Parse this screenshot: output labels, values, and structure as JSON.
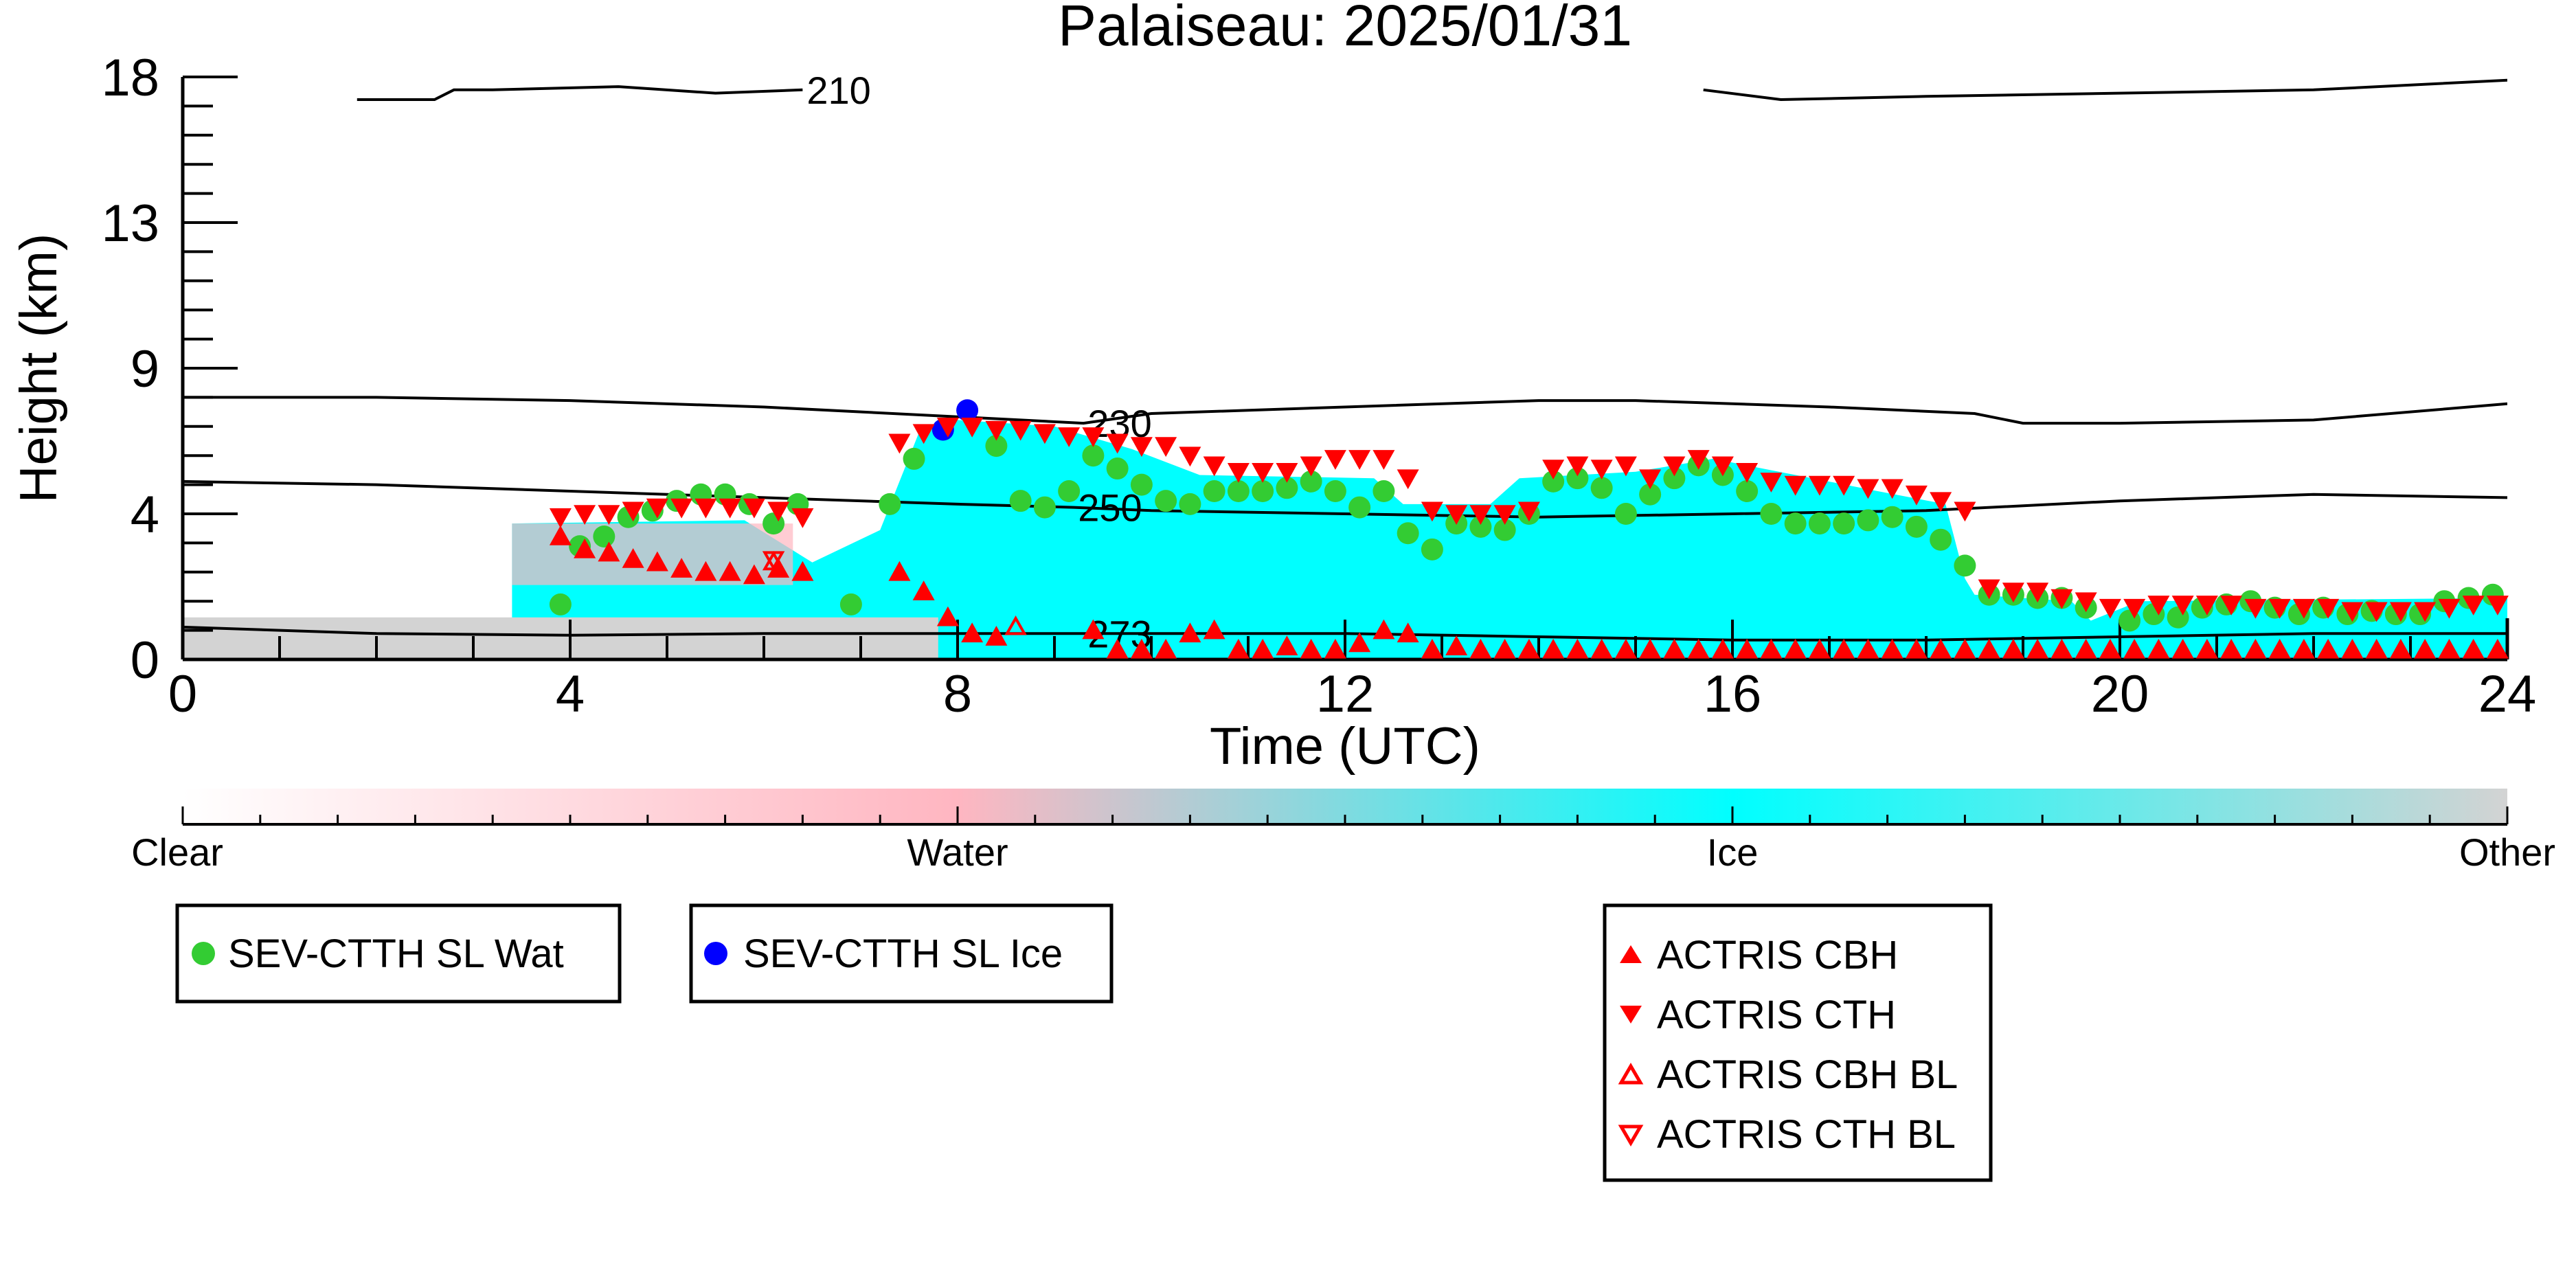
{
  "chart_data": {
    "type": "scatter",
    "title": "Palaiseau: 2025/01/31",
    "xlabel": "Time (UTC)",
    "ylabel": "Height (km)",
    "xlim": [
      0,
      24
    ],
    "ylim": [
      0,
      18
    ],
    "xticks": [
      "0",
      "4",
      "8",
      "12",
      "16",
      "20",
      "24"
    ],
    "yticks": [
      "0",
      "4",
      "9",
      "13",
      "18"
    ],
    "ytick_values": [
      0,
      4.5,
      9,
      13.5,
      18
    ],
    "colorbar": {
      "labels": [
        "Clear",
        "Water",
        "Ice",
        "Other"
      ],
      "colors": [
        "#ffffff",
        "#ffb6c1",
        "#00ffff",
        "#d3d3d3"
      ]
    },
    "contours": [
      {
        "label": "210",
        "x": [
          1.8,
          2.6,
          2.8,
          3.2,
          4.5,
          5.5,
          6.4
        ],
        "y": [
          17.3,
          17.3,
          17.6,
          17.6,
          17.7,
          17.5,
          17.6
        ]
      },
      {
        "label": "",
        "x": [
          15.7,
          16.5,
          18,
          20,
          22,
          24
        ],
        "y": [
          17.6,
          17.3,
          17.4,
          17.5,
          17.6,
          17.9
        ]
      },
      {
        "label": "230",
        "x": [
          0,
          2,
          4,
          6,
          8,
          9.3,
          10,
          12,
          14,
          15,
          17,
          18.5,
          19,
          20,
          22,
          24
        ],
        "y": [
          8.1,
          8.1,
          8.0,
          7.8,
          7.5,
          7.3,
          7.6,
          7.8,
          8.0,
          8.0,
          7.8,
          7.6,
          7.3,
          7.3,
          7.4,
          7.9
        ]
      },
      {
        "label": "250",
        "x": [
          0,
          2,
          4,
          6,
          8,
          9.2,
          10,
          12,
          14,
          16,
          18,
          20,
          22,
          24
        ],
        "y": [
          5.5,
          5.4,
          5.2,
          5.0,
          4.8,
          4.7,
          4.6,
          4.5,
          4.4,
          4.5,
          4.6,
          4.9,
          5.1,
          5.0
        ]
      },
      {
        "label": "273",
        "x": [
          0,
          2,
          4,
          6,
          8,
          9.3,
          10,
          12,
          14,
          16,
          18,
          20,
          22,
          24
        ],
        "y": [
          1.0,
          0.8,
          0.75,
          0.8,
          0.8,
          0.8,
          0.8,
          0.8,
          0.7,
          0.6,
          0.6,
          0.7,
          0.8,
          0.8
        ]
      }
    ],
    "cloud_regions": [
      {
        "phase": "Ice",
        "x": [
          3.4,
          5.8,
          6.5,
          7.2,
          7.6,
          8.0,
          9.0,
          9.8,
          10.5,
          12.3,
          12.6,
          13.5,
          13.8,
          15.0,
          15.8,
          17.5,
          18.2,
          18.4,
          18.5,
          19.5,
          19.7,
          20.2,
          24.0,
          24.0,
          3.4
        ],
        "y": [
          4.2,
          4.3,
          3.0,
          4.0,
          7.0,
          7.4,
          7.2,
          6.5,
          5.7,
          5.6,
          4.8,
          4.8,
          5.6,
          5.8,
          6.2,
          5.2,
          4.8,
          2.5,
          2.0,
          1.8,
          1.2,
          1.8,
          1.9,
          0.0,
          0.0
        ]
      },
      {
        "phase": "Other",
        "x": [
          0,
          7.8,
          7.8,
          0
        ],
        "y": [
          0,
          0,
          1.3,
          1.3
        ]
      },
      {
        "phase": "Water",
        "x": [
          3.4,
          6.3,
          6.3,
          3.4
        ],
        "y": [
          2.3,
          2.3,
          4.2,
          4.2
        ]
      }
    ],
    "series": [
      {
        "name": "SEV-CTTH SL Wat",
        "marker": "circle",
        "color": "#33cc33",
        "x": [
          3.9,
          4.1,
          4.35,
          4.6,
          4.85,
          5.1,
          5.35,
          5.6,
          5.85,
          6.1,
          6.35,
          6.9,
          7.3,
          7.55,
          8.4,
          8.65,
          8.9,
          9.15,
          9.4,
          9.65,
          9.9,
          10.15,
          10.4,
          10.65,
          10.9,
          11.15,
          11.4,
          11.65,
          11.9,
          12.15,
          12.4,
          12.65,
          12.9,
          13.15,
          13.4,
          13.65,
          13.9,
          14.15,
          14.4,
          14.65,
          14.9,
          15.15,
          15.4,
          15.65,
          15.9,
          16.15,
          16.4,
          16.65,
          16.9,
          17.15,
          17.4,
          17.65,
          17.9,
          18.15,
          18.4,
          18.65,
          18.9,
          19.15,
          19.4,
          19.65,
          20.1,
          20.35,
          20.6,
          20.85,
          21.1,
          21.35,
          21.6,
          21.85,
          22.1,
          22.35,
          22.6,
          22.85,
          23.1,
          23.35,
          23.6,
          23.85
        ],
        "y": [
          1.7,
          3.5,
          3.8,
          4.4,
          4.6,
          4.9,
          5.1,
          5.1,
          4.8,
          4.2,
          4.8,
          1.7,
          4.8,
          6.2,
          6.6,
          4.9,
          4.7,
          5.2,
          6.3,
          5.9,
          5.4,
          4.9,
          4.8,
          5.2,
          5.2,
          5.2,
          5.3,
          5.5,
          5.2,
          4.7,
          5.2,
          3.9,
          3.4,
          4.2,
          4.1,
          4.0,
          4.5,
          5.5,
          5.6,
          5.3,
          4.5,
          5.1,
          5.6,
          6.0,
          5.7,
          5.2,
          4.5,
          4.2,
          4.2,
          4.2,
          4.3,
          4.4,
          4.1,
          3.7,
          2.9,
          2.0,
          2.0,
          1.9,
          1.9,
          1.6,
          1.2,
          1.4,
          1.3,
          1.6,
          1.7,
          1.8,
          1.6,
          1.4,
          1.6,
          1.4,
          1.5,
          1.4,
          1.4,
          1.8,
          1.9,
          2.0
        ]
      },
      {
        "name": "SEV-CTTH SL Ice",
        "marker": "circle",
        "color": "#0000ff",
        "x": [
          7.85,
          8.1
        ],
        "y": [
          7.1,
          7.7
        ]
      },
      {
        "name": "ACTRIS CBH",
        "marker": "triangle-up",
        "color": "#ff0000",
        "x": [
          3.9,
          4.15,
          4.4,
          4.65,
          4.9,
          5.15,
          5.4,
          5.65,
          5.9,
          6.15,
          6.4,
          7.4,
          7.65,
          7.9,
          8.15,
          8.4,
          9.4,
          9.65,
          9.9,
          10.15,
          10.4,
          10.65,
          10.9,
          11.15,
          11.4,
          11.65,
          11.9,
          12.15,
          12.4,
          12.65,
          12.9,
          13.15,
          13.4,
          13.65,
          13.9,
          14.15,
          14.4,
          14.65,
          14.9,
          15.15,
          15.4,
          15.65,
          15.9,
          16.15,
          16.4,
          16.65,
          16.9,
          17.15,
          17.4,
          17.65,
          17.9,
          18.15,
          18.4,
          18.65,
          18.9,
          19.15,
          19.4,
          19.65,
          19.9,
          20.15,
          20.4,
          20.65,
          20.9,
          21.15,
          21.4,
          21.65,
          21.9,
          22.15,
          22.4,
          22.65,
          22.9,
          23.15,
          23.4,
          23.65,
          23.9
        ],
        "y": [
          3.8,
          3.4,
          3.3,
          3.1,
          3.0,
          2.8,
          2.7,
          2.7,
          2.6,
          2.8,
          2.7,
          2.7,
          2.1,
          1.3,
          0.8,
          0.7,
          0.9,
          0.3,
          0.3,
          0.3,
          0.8,
          0.9,
          0.3,
          0.3,
          0.4,
          0.3,
          0.3,
          0.5,
          0.9,
          0.8,
          0.3,
          0.4,
          0.3,
          0.3,
          0.3,
          0.3,
          0.3,
          0.3,
          0.3,
          0.3,
          0.3,
          0.3,
          0.3,
          0.3,
          0.3,
          0.3,
          0.3,
          0.3,
          0.3,
          0.3,
          0.3,
          0.3,
          0.3,
          0.3,
          0.3,
          0.3,
          0.3,
          0.3,
          0.3,
          0.3,
          0.3,
          0.3,
          0.3,
          0.3,
          0.3,
          0.3,
          0.3,
          0.3,
          0.3,
          0.3,
          0.3,
          0.3,
          0.3,
          0.3,
          0.3
        ]
      },
      {
        "name": "ACTRIS CTH",
        "marker": "triangle-down",
        "color": "#ff0000",
        "x": [
          3.9,
          4.15,
          4.4,
          4.65,
          4.9,
          5.15,
          5.4,
          5.65,
          5.9,
          6.15,
          6.4,
          7.4,
          7.65,
          7.9,
          8.15,
          8.4,
          8.65,
          8.9,
          9.15,
          9.4,
          9.65,
          9.9,
          10.15,
          10.4,
          10.65,
          10.9,
          11.15,
          11.4,
          11.65,
          11.9,
          12.15,
          12.4,
          12.65,
          12.9,
          13.15,
          13.4,
          13.65,
          13.9,
          14.15,
          14.4,
          14.65,
          14.9,
          15.15,
          15.4,
          15.65,
          15.9,
          16.15,
          16.4,
          16.65,
          16.9,
          17.15,
          17.4,
          17.65,
          17.9,
          18.15,
          18.4,
          18.65,
          18.9,
          19.15,
          19.4,
          19.65,
          19.9,
          20.15,
          20.4,
          20.65,
          20.9,
          21.15,
          21.4,
          21.65,
          21.9,
          22.15,
          22.4,
          22.65,
          22.9,
          23.15,
          23.4,
          23.65,
          23.9
        ],
        "y": [
          4.4,
          4.5,
          4.5,
          4.6,
          4.7,
          4.7,
          4.7,
          4.7,
          4.7,
          4.6,
          4.4,
          6.7,
          7.0,
          7.2,
          7.2,
          7.1,
          7.1,
          7.0,
          6.9,
          6.9,
          6.7,
          6.6,
          6.6,
          6.3,
          6.0,
          5.8,
          5.8,
          5.8,
          6.0,
          6.2,
          6.2,
          6.2,
          5.6,
          4.6,
          4.5,
          4.5,
          4.5,
          4.6,
          5.9,
          6.0,
          5.9,
          6.0,
          5.6,
          6.0,
          6.2,
          6.0,
          5.8,
          5.5,
          5.4,
          5.4,
          5.4,
          5.3,
          5.3,
          5.1,
          4.9,
          4.6,
          2.2,
          2.1,
          2.1,
          1.9,
          1.8,
          1.6,
          1.6,
          1.7,
          1.7,
          1.7,
          1.7,
          1.6,
          1.6,
          1.6,
          1.6,
          1.5,
          1.5,
          1.5,
          1.5,
          1.6,
          1.7,
          1.7
        ]
      },
      {
        "name": "ACTRIS CBH BL",
        "marker": "triangle-up-open",
        "color": "#ff0000",
        "x": [
          6.1,
          8.6
        ],
        "y": [
          3.0,
          1.0
        ]
      },
      {
        "name": "ACTRIS CTH BL",
        "marker": "triangle-down-open",
        "color": "#ff0000",
        "x": [
          6.1
        ],
        "y": [
          3.1
        ]
      }
    ],
    "legend": [
      [
        "SEV-CTTH SL Wat"
      ],
      [
        "SEV-CTTH SL Ice"
      ],
      [
        "ACTRIS CBH",
        "ACTRIS CTH",
        "ACTRIS CBH BL",
        "ACTRIS CTH BL"
      ]
    ],
    "grid": false
  }
}
